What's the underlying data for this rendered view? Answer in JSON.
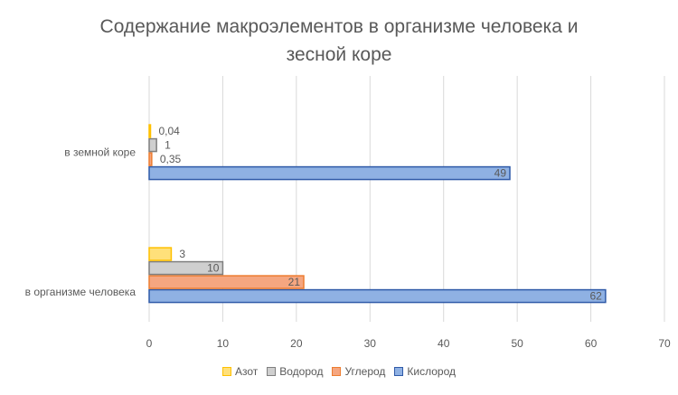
{
  "chart_data": {
    "type": "bar",
    "orientation": "horizontal",
    "title_lines": [
      "Содержание макроэлементов в организме человека и",
      "зесной коре"
    ],
    "categories": [
      "в организме человека",
      "в земной коре"
    ],
    "series": [
      {
        "name": "Кислород",
        "values": [
          62,
          49
        ],
        "labels": [
          "62",
          "49"
        ],
        "fill": "#8fb1e3",
        "stroke": "#2f5aa8"
      },
      {
        "name": "Углерод",
        "values": [
          21,
          0.35
        ],
        "labels": [
          "21",
          "0,35"
        ],
        "fill": "#f5a680",
        "stroke": "#ed7d31"
      },
      {
        "name": "Водород",
        "values": [
          10,
          1
        ],
        "labels": [
          "10",
          "1"
        ],
        "fill": "#cfcfcf",
        "stroke": "#7f7f7f"
      },
      {
        "name": "Азот",
        "values": [
          3,
          0.04
        ],
        "labels": [
          "3",
          "0,04"
        ],
        "fill": "#ffe07a",
        "stroke": "#ffc000"
      }
    ],
    "xlim": [
      0,
      70
    ],
    "ticks": [
      "0",
      "10",
      "20",
      "30",
      "40",
      "50",
      "60",
      "70"
    ],
    "legend_order": [
      "Азот",
      "Водород",
      "Углерод",
      "Кислород"
    ],
    "legend_position": "bottom",
    "grid": true
  }
}
